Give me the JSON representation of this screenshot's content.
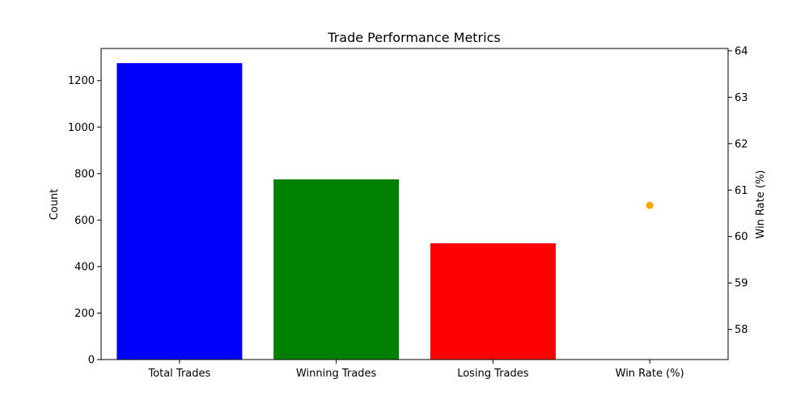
{
  "chart_data": {
    "type": "bar",
    "title": "Trade Performance Metrics",
    "categories": [
      "Total Trades",
      "Winning Trades",
      "Losing Trades",
      "Win Rate (%)"
    ],
    "series": [
      {
        "axis": "left",
        "mark": "bar",
        "values": [
          1275,
          775,
          500,
          null
        ],
        "colors": [
          "#0000ff",
          "#008000",
          "#ff0000",
          null
        ]
      },
      {
        "axis": "right",
        "mark": "point",
        "values": [
          null,
          null,
          null,
          60.67
        ],
        "color": "#ffa500"
      }
    ],
    "ylabel": "Count",
    "ylim": [
      0,
      1338
    ],
    "yticks": [
      0,
      200,
      400,
      600,
      800,
      1000,
      1200
    ],
    "y2label": "Win Rate (%)",
    "y2lim": [
      57.35,
      64.05
    ],
    "y2ticks": [
      58,
      59,
      60,
      61,
      62,
      63,
      64
    ],
    "grid": false
  }
}
